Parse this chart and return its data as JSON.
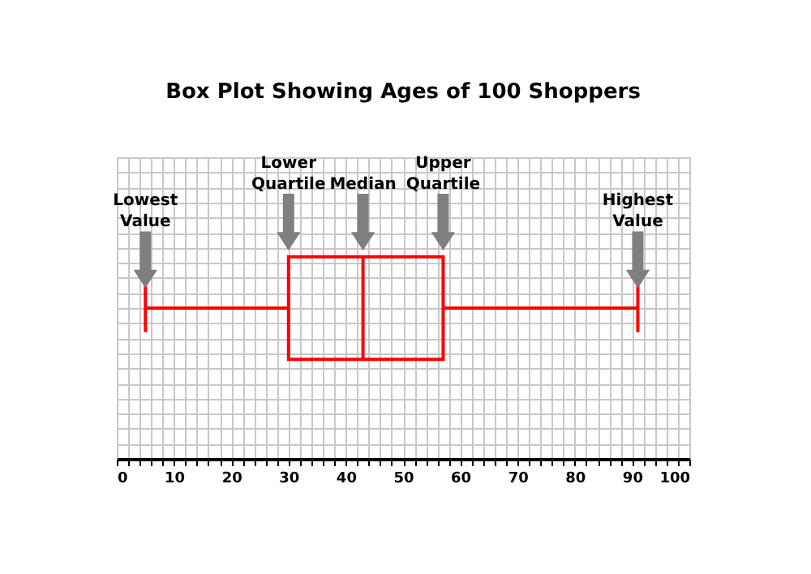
{
  "chart_data": {
    "type": "box",
    "title": "Box Plot Showing Ages of 100 Shoppers",
    "categories": [
      null
    ],
    "boxes": [
      {
        "low": 5,
        "q1": 30,
        "median": 43,
        "q3": 57,
        "high": 91
      }
    ],
    "color": "#ff0000",
    "orientation": "horizontal",
    "xlim": [
      0,
      100
    ],
    "xticks": [
      0,
      {
        "value": 2,
        "label": null
      },
      {
        "value": 4,
        "label": null
      },
      {
        "value": 6,
        "label": null
      },
      {
        "value": 8,
        "label": null
      },
      10,
      {
        "value": 12,
        "label": null
      },
      {
        "value": 14,
        "label": null
      },
      {
        "value": 16,
        "label": null
      },
      {
        "value": 18,
        "label": null
      },
      20,
      {
        "value": 22,
        "label": null
      },
      {
        "value": 24,
        "label": null
      },
      {
        "value": 26,
        "label": null
      },
      {
        "value": 28,
        "label": null
      },
      30,
      {
        "value": 32,
        "label": null
      },
      {
        "value": 34,
        "label": null
      },
      {
        "value": 36,
        "label": null
      },
      {
        "value": 38,
        "label": null
      },
      40,
      {
        "value": 42,
        "label": null
      },
      {
        "value": 44,
        "label": null
      },
      {
        "value": 46,
        "label": null
      },
      {
        "value": 48,
        "label": null
      },
      50,
      {
        "value": 52,
        "label": null
      },
      {
        "value": 54,
        "label": null
      },
      {
        "value": 56,
        "label": null
      },
      {
        "value": 58,
        "label": null
      },
      60,
      {
        "value": 62,
        "label": null
      },
      {
        "value": 64,
        "label": null
      },
      {
        "value": 66,
        "label": null
      },
      {
        "value": 68,
        "label": null
      },
      70,
      {
        "value": 72,
        "label": null
      },
      {
        "value": 74,
        "label": null
      },
      {
        "value": 76,
        "label": null
      },
      {
        "value": 78,
        "label": null
      },
      80,
      {
        "value": 82,
        "label": null
      },
      {
        "value": 84,
        "label": null
      },
      {
        "value": 86,
        "label": null
      },
      {
        "value": 88,
        "label": null
      },
      90,
      {
        "value": 92,
        "label": null
      },
      {
        "value": 94,
        "label": null
      },
      {
        "value": 96,
        "label": null
      },
      {
        "value": 98,
        "label": null
      },
      100
    ],
    "grid": true,
    "annotations": [
      "Lowest\nValue",
      "Lower\nQuartile",
      "Median",
      "Upper\nQuartile",
      "Highest\nValue"
    ]
  }
}
